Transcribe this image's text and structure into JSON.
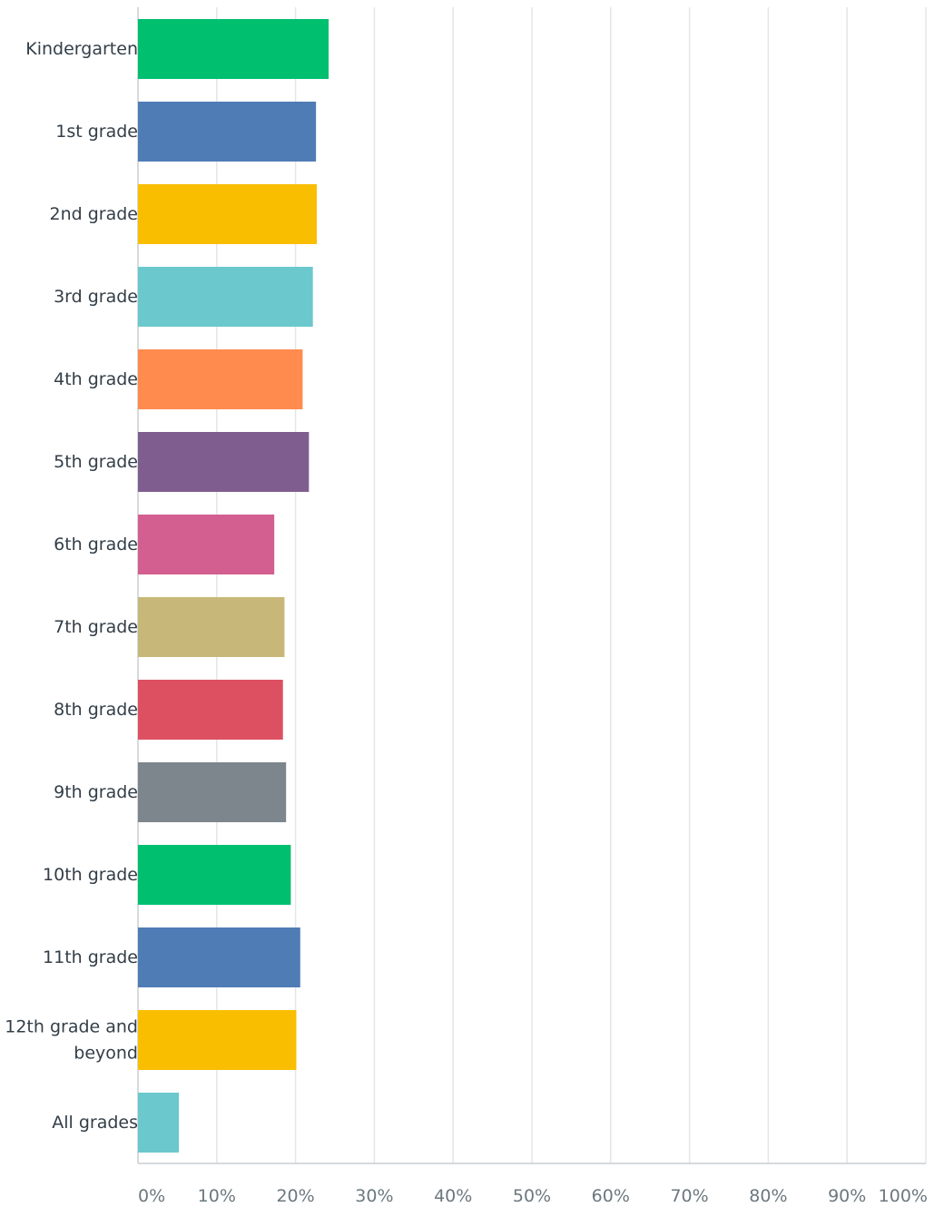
{
  "chart_data": {
    "type": "bar",
    "orientation": "horizontal",
    "categories": [
      [
        "Kindergarten"
      ],
      [
        "1st grade"
      ],
      [
        "2nd grade"
      ],
      [
        "3rd grade"
      ],
      [
        "4th grade"
      ],
      [
        "5th grade"
      ],
      [
        "6th grade"
      ],
      [
        "7th grade"
      ],
      [
        "8th grade"
      ],
      [
        "9th grade"
      ],
      [
        "10th grade"
      ],
      [
        "11th grade"
      ],
      [
        "12th grade and",
        "beyond"
      ],
      [
        "All grades"
      ]
    ],
    "values": [
      24.2,
      22.6,
      22.7,
      22.2,
      20.9,
      21.7,
      17.3,
      18.6,
      18.4,
      18.8,
      19.4,
      20.6,
      20.1,
      5.2
    ],
    "colors": [
      "#00bf6f",
      "#507cb6",
      "#f9be00",
      "#6bc8cd",
      "#ff8b4f",
      "#7f5e8f",
      "#d25f90",
      "#c7b879",
      "#dc5061",
      "#7d868c",
      "#00bf6f",
      "#507cb6",
      "#f9be00",
      "#6bc8cd"
    ],
    "x_ticks": [
      "0%",
      "10%",
      "20%",
      "30%",
      "40%",
      "50%",
      "60%",
      "70%",
      "80%",
      "90%",
      "100%"
    ],
    "xlim": [
      0,
      100
    ],
    "grid": true,
    "legend": "none"
  }
}
